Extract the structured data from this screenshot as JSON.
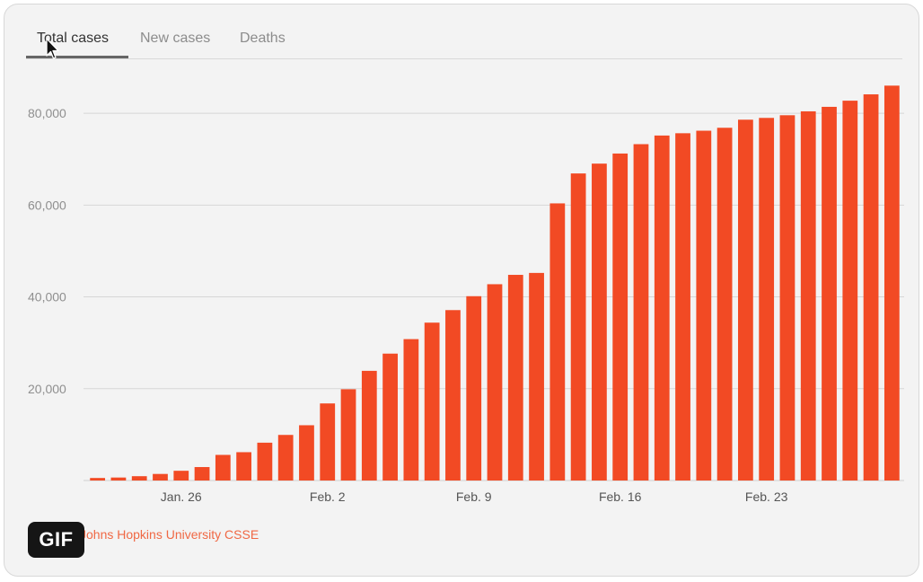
{
  "tabs": {
    "total_cases": "Total cases",
    "new_cases": "New cases",
    "deaths": "Deaths"
  },
  "source": "Johns Hopkins University CSSE",
  "badge": "GIF",
  "colors": {
    "bar": "#f24a24",
    "grid": "#d6d6d6",
    "axis_text": "#8f8f8f"
  },
  "chart_data": {
    "type": "bar",
    "title": "",
    "xlabel": "",
    "ylabel": "",
    "ylim": [
      0,
      90000
    ],
    "y_ticks": [
      20000,
      40000,
      60000,
      80000
    ],
    "y_tick_labels": [
      "20,000",
      "40,000",
      "60,000",
      "80,000"
    ],
    "x_tick_labels": [
      "Jan. 26",
      "Feb. 2",
      "Feb. 9",
      "Feb. 16",
      "Feb. 23"
    ],
    "x_tick_indices": [
      4,
      11,
      18,
      25,
      32
    ],
    "categories": [
      "Jan. 22",
      "Jan. 23",
      "Jan. 24",
      "Jan. 25",
      "Jan. 26",
      "Jan. 27",
      "Jan. 28",
      "Jan. 29",
      "Jan. 30",
      "Jan. 31",
      "Feb. 1",
      "Feb. 2",
      "Feb. 3",
      "Feb. 4",
      "Feb. 5",
      "Feb. 6",
      "Feb. 7",
      "Feb. 8",
      "Feb. 9",
      "Feb. 10",
      "Feb. 11",
      "Feb. 12",
      "Feb. 13",
      "Feb. 14",
      "Feb. 15",
      "Feb. 16",
      "Feb. 17",
      "Feb. 18",
      "Feb. 19",
      "Feb. 20",
      "Feb. 21",
      "Feb. 22",
      "Feb. 23",
      "Feb. 24",
      "Feb. 25",
      "Feb. 26",
      "Feb. 27",
      "Feb. 28",
      "Feb. 29"
    ],
    "values": [
      550,
      650,
      940,
      1430,
      2120,
      2930,
      5580,
      6170,
      8240,
      9930,
      12040,
      16790,
      19880,
      23890,
      27640,
      30800,
      34390,
      37120,
      40150,
      42760,
      44800,
      45220,
      60370,
      66890,
      69030,
      71230,
      73270,
      75150,
      75650,
      76200,
      76840,
      78600,
      78990,
      79570,
      80420,
      81400,
      82740,
      84120,
      86020
    ],
    "grid": true,
    "legend": "none"
  }
}
